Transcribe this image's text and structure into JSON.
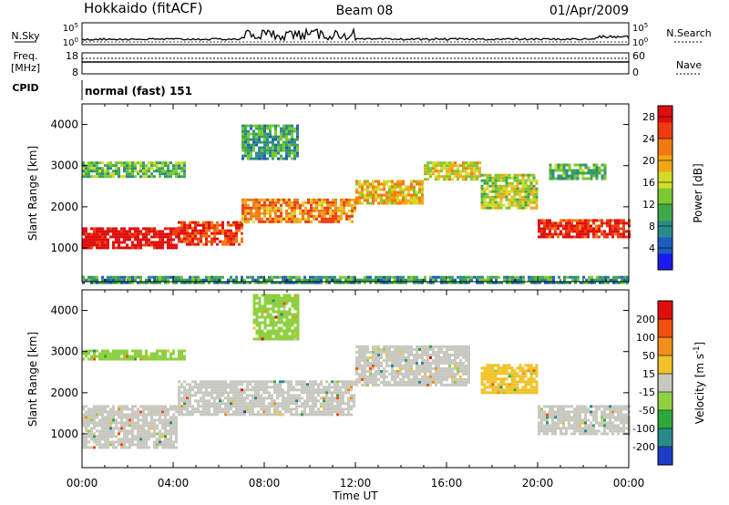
{
  "header": {
    "station": "Hokkaido (fitACF)",
    "beam": "Beam 08",
    "date": "01/Apr/2009"
  },
  "sky_panel": {
    "left_label": "N.Sky",
    "right_label": "N.Search",
    "left_ticks": [
      "10^5",
      "10^0"
    ],
    "right_ticks": [
      "10^5",
      "10^0"
    ]
  },
  "freq_panel": {
    "left_label_1": "Freq.",
    "left_label_2": "[MHz]",
    "right_label": "Nave",
    "left_ticks": [
      "18",
      "8"
    ],
    "right_ticks": [
      "60",
      "0"
    ]
  },
  "cpid_panel": {
    "label": "CPID",
    "mode": "normal (fast) 151"
  },
  "time_axis": {
    "label": "Time UT",
    "ticks": [
      "00:00",
      "04:00",
      "08:00",
      "12:00",
      "16:00",
      "20:00",
      "00:00"
    ]
  },
  "chart_data": [
    {
      "type": "heatmap",
      "title": "",
      "xlabel": "Time UT",
      "ylabel": "Slant Range [km]",
      "xlim": [
        "00:00",
        "24:00"
      ],
      "ylim": [
        180,
        4500
      ],
      "y_ticks": [
        1000,
        2000,
        3000,
        4000
      ],
      "colorbar": {
        "label": "Power [dB]",
        "ticks": [
          4,
          8,
          12,
          16,
          20,
          24,
          28
        ],
        "range": [
          0,
          30
        ],
        "colors": [
          "#1a1aee",
          "#1f5cc0",
          "#2b8a8a",
          "#3fa84a",
          "#7cc832",
          "#d2dc28",
          "#f0a818",
          "#f07a12",
          "#ee3c10",
          "#e00d0d"
        ]
      },
      "regions": [
        {
          "x": [
            0.0,
            4.2
          ],
          "y": [
            1000,
            1500
          ],
          "value": 30
        },
        {
          "x": [
            4.2,
            7.0
          ],
          "y": [
            1100,
            1650
          ],
          "value": 26
        },
        {
          "x": [
            7.0,
            12.0
          ],
          "y": [
            1650,
            2200
          ],
          "value": 22
        },
        {
          "x": [
            12.0,
            15.0
          ],
          "y": [
            2100,
            2650
          ],
          "value": 19
        },
        {
          "x": [
            15.0,
            17.5
          ],
          "y": [
            2700,
            3100
          ],
          "value": 17
        },
        {
          "x": [
            17.5,
            20.0
          ],
          "y": [
            2000,
            2800
          ],
          "value": 15
        },
        {
          "x": [
            20.0,
            24.0
          ],
          "y": [
            1300,
            1700
          ],
          "value": 28
        },
        {
          "x": [
            0.0,
            4.5
          ],
          "y": [
            2750,
            3100
          ],
          "value": 12
        },
        {
          "x": [
            7.0,
            9.5
          ],
          "y": [
            3200,
            4000
          ],
          "value": 10
        },
        {
          "x": [
            20.5,
            23.0
          ],
          "y": [
            2700,
            3050
          ],
          "value": 11
        },
        {
          "x": [
            0.0,
            24.0
          ],
          "y": [
            180,
            320
          ],
          "value": 9
        }
      ]
    },
    {
      "type": "heatmap",
      "title": "",
      "xlabel": "Time UT",
      "ylabel": "Slant Range [km]",
      "xlim": [
        "00:00",
        "24:00"
      ],
      "ylim": [
        180,
        4500
      ],
      "y_ticks": [
        1000,
        2000,
        3000,
        4000
      ],
      "colorbar": {
        "label": "Velocity [m s^-1]",
        "ticks": [
          200,
          100,
          50,
          15,
          -15,
          -50,
          -100,
          -200
        ],
        "range": [
          -250,
          250
        ],
        "colors": [
          "#1f3cc8",
          "#2a8a8a",
          "#2ea83c",
          "#8fd040",
          "#c8c8c0",
          "#f0c228",
          "#f0901a",
          "#f05010",
          "#e00d0d"
        ]
      },
      "regions": [
        {
          "x": [
            0.0,
            4.2
          ],
          "y": [
            700,
            1700
          ],
          "value": 0
        },
        {
          "x": [
            4.2,
            12.0
          ],
          "y": [
            1500,
            2300
          ],
          "value": 0
        },
        {
          "x": [
            12.0,
            17.0
          ],
          "y": [
            2200,
            3150
          ],
          "value": 0
        },
        {
          "x": [
            17.5,
            20.0
          ],
          "y": [
            2000,
            2700
          ],
          "value": 60
        },
        {
          "x": [
            20.0,
            24.0
          ],
          "y": [
            1000,
            1700
          ],
          "value": 0
        },
        {
          "x": [
            0.0,
            4.5
          ],
          "y": [
            2800,
            3050
          ],
          "value": -40
        },
        {
          "x": [
            7.5,
            9.5
          ],
          "y": [
            3300,
            4400
          ],
          "value": -60
        }
      ]
    }
  ]
}
